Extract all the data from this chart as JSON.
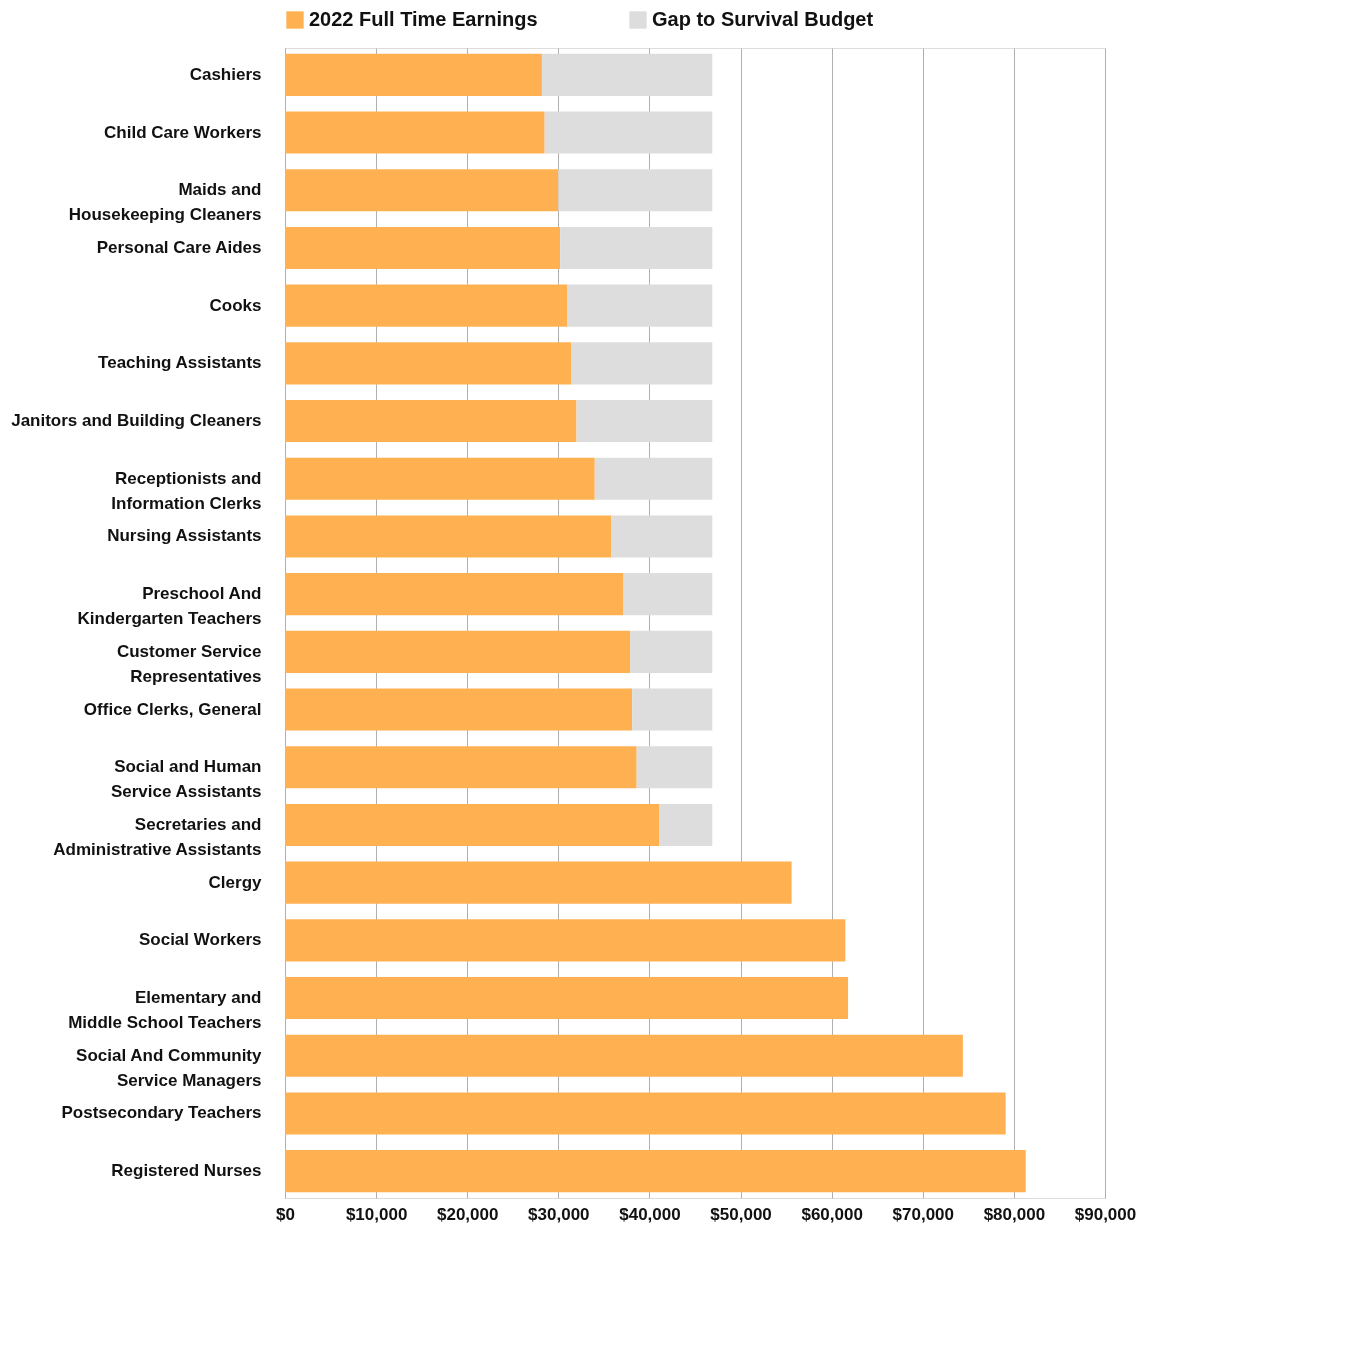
{
  "chart_data": {
    "type": "bar",
    "orientation": "horizontal",
    "stacked": true,
    "categories": [
      "Cashiers",
      "Child Care Workers",
      "Maids and\nHousekeeping Cleaners",
      "Personal Care Aides",
      "Cooks",
      "Teaching Assistants",
      "Janitors and Building Cleaners",
      "Receptionists and\nInformation Clerks",
      "Nursing Assistants",
      "Preschool And\nKindergarten Teachers",
      "Customer Service\nRepresentatives",
      "Office Clerks, General",
      "Social and Human\nService Assistants",
      "Secretaries and\nAdministrative Assistants",
      "Clergy",
      "Social Workers",
      "Elementary and\nMiddle School Teachers",
      "Social And Community\nService Managers",
      "Postsecondary Teachers",
      "Registered Nurses"
    ],
    "series": [
      {
        "name": "2022 Full Time Earnings",
        "color": "#ffb152",
        "values": [
          28200,
          28500,
          30000,
          30200,
          31000,
          31400,
          32000,
          34000,
          35800,
          37100,
          37900,
          38100,
          38600,
          41100,
          55600,
          61500,
          61800,
          74400,
          79100,
          81300
        ]
      },
      {
        "name": "Gap to Survival Budget",
        "color": "#dddddd",
        "values": [
          18700,
          18400,
          16900,
          16700,
          15900,
          15500,
          14900,
          12900,
          11100,
          9800,
          9000,
          8800,
          8300,
          5800,
          null,
          null,
          null,
          null,
          null,
          null
        ]
      }
    ],
    "xlim": [
      0,
      90000
    ],
    "xticks": [
      {
        "value": 0,
        "label": "$0"
      },
      {
        "value": 10000,
        "label": "$10,000"
      },
      {
        "value": 20000,
        "label": "$20,000"
      },
      {
        "value": 30000,
        "label": "$30,000"
      },
      {
        "value": 40000,
        "label": "$40,000"
      },
      {
        "value": 50000,
        "label": "$50,000"
      },
      {
        "value": 60000,
        "label": "$60,000"
      },
      {
        "value": 70000,
        "label": "$70,000"
      },
      {
        "value": 80000,
        "label": "$80,000"
      },
      {
        "value": 90000,
        "label": "$90,000"
      }
    ],
    "grid": "x",
    "legend": "top"
  }
}
